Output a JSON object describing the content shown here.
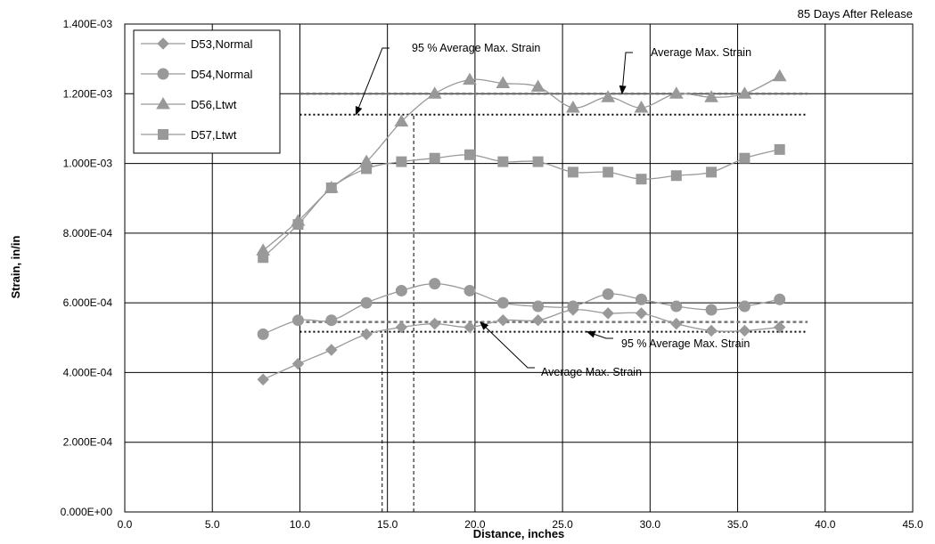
{
  "chart_data": {
    "type": "line",
    "title": "85 Days After Release",
    "xlabel": "Distance, inches",
    "ylabel": "Strain, in/in",
    "xlim": [
      0,
      45
    ],
    "ylim": [
      0,
      0.0014
    ],
    "x_ticks": [
      0,
      5,
      10,
      15,
      20,
      25,
      30,
      35,
      40,
      45
    ],
    "x_tick_labels": [
      "0.0",
      "5.0",
      "10.0",
      "15.0",
      "20.0",
      "25.0",
      "30.0",
      "35.0",
      "40.0",
      "45.0"
    ],
    "y_ticks": [
      0,
      0.0002,
      0.0004,
      0.0006,
      0.0008,
      0.001,
      0.0012,
      0.0014
    ],
    "y_tick_labels": [
      "0.000E+00",
      "2.000E-04",
      "4.000E-04",
      "6.000E-04",
      "8.000E-04",
      "1.000E-03",
      "1.200E-03",
      "1.400E-03"
    ],
    "grid": true,
    "legend_position": "top-left",
    "x": [
      7.9,
      9.9,
      11.8,
      13.8,
      15.8,
      17.7,
      19.7,
      21.6,
      23.6,
      25.6,
      27.6,
      29.5,
      31.5,
      33.5,
      35.4,
      37.4
    ],
    "series": [
      {
        "name": "D53,Normal",
        "marker": "diamond",
        "color": "#999999",
        "values": [
          0.00038,
          0.000425,
          0.000465,
          0.00051,
          0.00053,
          0.00054,
          0.00053,
          0.00055,
          0.00055,
          0.00058,
          0.00057,
          0.00057,
          0.00054,
          0.00052,
          0.00052,
          0.00053
        ]
      },
      {
        "name": "D54,Normal",
        "marker": "circle",
        "color": "#999999",
        "values": [
          0.00051,
          0.00055,
          0.00055,
          0.0006,
          0.000635,
          0.000655,
          0.000635,
          0.0006,
          0.00059,
          0.00059,
          0.000625,
          0.00061,
          0.00059,
          0.00058,
          0.00059,
          0.00061
        ]
      },
      {
        "name": "D56,Ltwt",
        "marker": "triangle",
        "color": "#999999",
        "values": [
          0.00075,
          0.000835,
          0.00093,
          0.001005,
          0.00112,
          0.0012,
          0.00124,
          0.00123,
          0.00122,
          0.00116,
          0.00119,
          0.00116,
          0.0012,
          0.00119,
          0.0012,
          0.00125
        ]
      },
      {
        "name": "D57,Ltwt",
        "marker": "square",
        "color": "#999999",
        "values": [
          0.00073,
          0.000825,
          0.00093,
          0.000985,
          0.001005,
          0.001015,
          0.001025,
          0.001005,
          0.001005,
          0.000975,
          0.000975,
          0.000955,
          0.000965,
          0.000975,
          0.001015,
          0.00104
        ]
      }
    ],
    "reference_lines": [
      {
        "kind": "hline",
        "style": "dashed",
        "y": 0.0012,
        "x_range": [
          10,
          39
        ]
      },
      {
        "kind": "hline",
        "style": "dotted",
        "y": 0.00114,
        "x_range": [
          10,
          39
        ]
      },
      {
        "kind": "hline",
        "style": "dashed",
        "y": 0.000545,
        "x_range": [
          10,
          39
        ]
      },
      {
        "kind": "hline",
        "style": "dotted",
        "y": 0.000517,
        "x_range": [
          10,
          39
        ]
      },
      {
        "kind": "vline",
        "style": "dashed",
        "x": 16.5,
        "y_range": [
          0,
          0.00114
        ]
      },
      {
        "kind": "vline",
        "style": "dashed",
        "x": 14.7,
        "y_range": [
          0,
          0.000517
        ]
      }
    ],
    "annotations": [
      {
        "text": "95 % Average Max. Strain",
        "target_x": 13.2,
        "target_y": 0.00114
      },
      {
        "text": "Average Max. Strain",
        "target_x": 28.4,
        "target_y": 0.0012
      },
      {
        "text": "95 % Average Max. Strain",
        "target_x": 26.4,
        "target_y": 0.000517
      },
      {
        "text": "Average Max. Strain",
        "target_x": 20.3,
        "target_y": 0.000545
      }
    ]
  }
}
